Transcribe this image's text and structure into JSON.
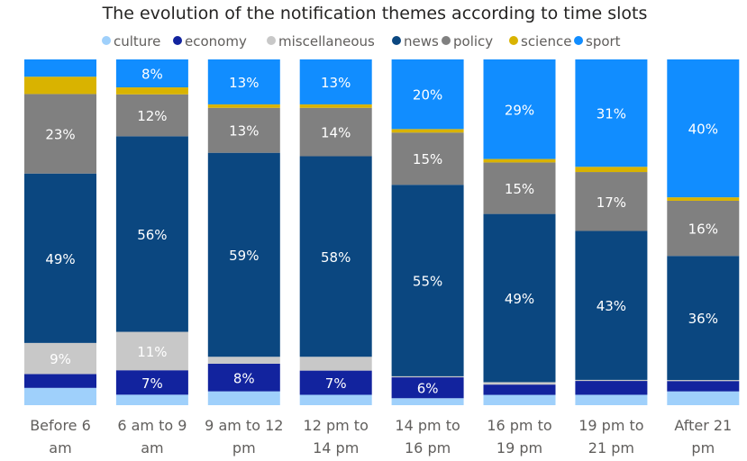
{
  "chart_data": {
    "type": "bar",
    "stacked": "100%",
    "title": "The evolution of the notification themes according to time slots",
    "legend_position": "top",
    "categories": [
      [
        "Before 6",
        "am"
      ],
      [
        "6 am to 9",
        "am"
      ],
      [
        "9 am to 12",
        "pm"
      ],
      [
        "12 pm to",
        "14 pm"
      ],
      [
        "14 pm to",
        "16 pm"
      ],
      [
        "16 pm to",
        "19 pm"
      ],
      [
        "19 pm to",
        "21 pm"
      ],
      [
        "After 21",
        "pm"
      ]
    ],
    "ylim": [
      0,
      100
    ],
    "label_threshold": 6,
    "series": [
      {
        "name": "culture",
        "color": "#9fd0fb",
        "values": [
          5,
          3,
          4,
          3,
          2,
          3,
          3,
          4
        ]
      },
      {
        "name": "economy",
        "color": "#12239e",
        "values": [
          4,
          7,
          8,
          7,
          6,
          3,
          4,
          3
        ]
      },
      {
        "name": "miscellaneous",
        "color": "#c8c8c8",
        "values": [
          9,
          11,
          2,
          4,
          0.3,
          0.7,
          0.3,
          0.3
        ]
      },
      {
        "name": "news",
        "color": "#0b4780",
        "values": [
          49,
          56,
          59,
          58,
          55,
          49,
          43,
          36
        ]
      },
      {
        "name": "policy",
        "color": "#808080",
        "values": [
          23,
          12,
          13,
          14,
          15,
          15,
          17,
          16
        ]
      },
      {
        "name": "science",
        "color": "#d9b300",
        "values": [
          5,
          2,
          1,
          1,
          1,
          1,
          1.5,
          1
        ]
      },
      {
        "name": "sport",
        "color": "#118dff",
        "values": [
          5,
          8,
          13,
          13,
          20,
          29,
          31,
          40
        ]
      }
    ]
  }
}
